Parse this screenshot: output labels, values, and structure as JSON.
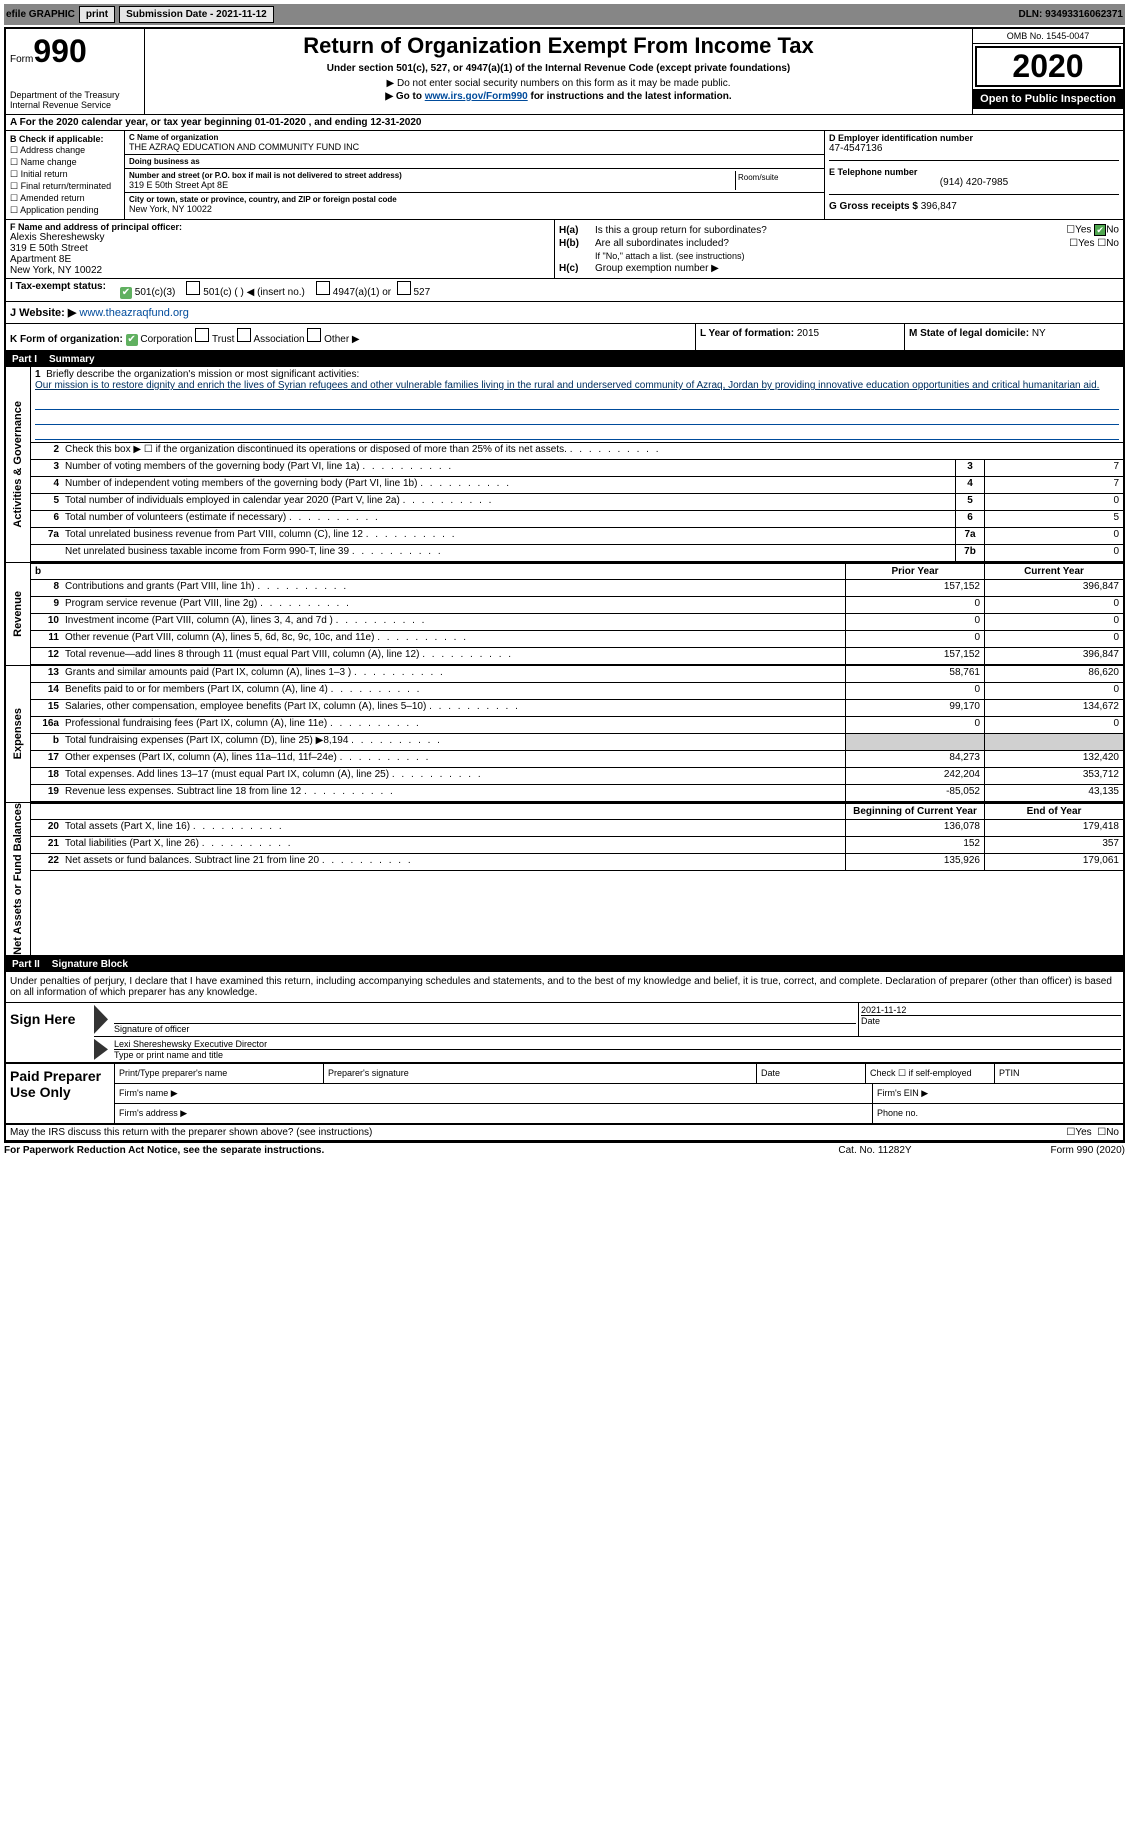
{
  "topbar": {
    "efile": "efile GRAPHIC",
    "print": "print",
    "submission_label": "Submission Date - 2021-11-12",
    "dln": "DLN: 93493316062371"
  },
  "header": {
    "form_word": "Form",
    "form_num": "990",
    "dept": "Department of the Treasury\nInternal Revenue Service",
    "title": "Return of Organization Exempt From Income Tax",
    "subtitle": "Under section 501(c), 527, or 4947(a)(1) of the Internal Revenue Code (except private foundations)",
    "line1": "▶ Do not enter social security numbers on this form as it may be made public.",
    "line2_pre": "▶ Go to ",
    "line2_link": "www.irs.gov/Form990",
    "line2_post": " for instructions and the latest information.",
    "omb": "OMB No. 1545-0047",
    "year": "2020",
    "open": "Open to Public Inspection"
  },
  "row_a": "A For the 2020 calendar year, or tax year beginning 01-01-2020   , and ending 12-31-2020",
  "box_b": {
    "label": "B Check if applicable:",
    "opts": [
      "Address change",
      "Name change",
      "Initial return",
      "Final return/terminated",
      "Amended return",
      "Application pending"
    ]
  },
  "box_c": {
    "name_lbl": "C Name of organization",
    "name": "THE AZRAQ EDUCATION AND COMMUNITY FUND INC",
    "dba_lbl": "Doing business as",
    "dba": "",
    "addr_lbl": "Number and street (or P.O. box if mail is not delivered to street address)",
    "room_lbl": "Room/suite",
    "addr": "319 E 50th Street Apt 8E",
    "city_lbl": "City or town, state or province, country, and ZIP or foreign postal code",
    "city": "New York, NY  10022"
  },
  "box_d": {
    "ein_lbl": "D Employer identification number",
    "ein": "47-4547136",
    "tel_lbl": "E Telephone number",
    "tel": "(914) 420-7985",
    "gross_lbl": "G Gross receipts $",
    "gross": "396,847"
  },
  "box_f": {
    "lbl": "F Name and address of principal officer:",
    "lines": [
      "Alexis Shereshewsky",
      "319 E 50th Street",
      "Apartment 8E",
      "New York, NY 10022"
    ]
  },
  "box_h": {
    "a_lbl": "H(a)",
    "a_txt": "Is this a group return for subordinates?",
    "b_lbl": "H(b)",
    "b_txt": "Are all subordinates included?",
    "b_note": "If \"No,\" attach a list. (see instructions)",
    "c_lbl": "H(c)",
    "c_txt": "Group exemption number ▶",
    "yes": "Yes",
    "no": "No"
  },
  "row_i": {
    "lbl": "I   Tax-exempt status:",
    "o1": "501(c)(3)",
    "o2": "501(c) (  ) ◀ (insert no.)",
    "o3": "4947(a)(1) or",
    "o4": "527"
  },
  "row_j": {
    "lbl": "J  Website: ▶",
    "url": "www.theazraqfund.org"
  },
  "row_k": {
    "lbl": "K Form of organization:",
    "o1": "Corporation",
    "o2": "Trust",
    "o3": "Association",
    "o4": "Other ▶"
  },
  "row_l": {
    "lbl": "L Year of formation:",
    "val": "2015"
  },
  "row_m": {
    "lbl": "M State of legal domicile:",
    "val": "NY"
  },
  "part1_hdr": {
    "part": "Part I",
    "title": "Summary"
  },
  "mission": {
    "num": "1",
    "lbl": "Briefly describe the organization's mission or most significant activities:",
    "txt": "Our mission is to restore dignity and enrich the lives of Syrian refugees and other vulnerable families living in the rural and underserved community of Azraq, Jordan by providing innovative education opportunities and critical humanitarian aid."
  },
  "gov_lines": [
    {
      "n": "2",
      "t": "Check this box ▶ ☐ if the organization discontinued its operations or disposed of more than 25% of its net assets.",
      "box": "",
      "v": ""
    },
    {
      "n": "3",
      "t": "Number of voting members of the governing body (Part VI, line 1a)",
      "box": "3",
      "v": "7"
    },
    {
      "n": "4",
      "t": "Number of independent voting members of the governing body (Part VI, line 1b)",
      "box": "4",
      "v": "7"
    },
    {
      "n": "5",
      "t": "Total number of individuals employed in calendar year 2020 (Part V, line 2a)",
      "box": "5",
      "v": "0"
    },
    {
      "n": "6",
      "t": "Total number of volunteers (estimate if necessary)",
      "box": "6",
      "v": "5"
    },
    {
      "n": "7a",
      "t": "Total unrelated business revenue from Part VIII, column (C), line 12",
      "box": "7a",
      "v": "0"
    },
    {
      "n": "",
      "t": "Net unrelated business taxable income from Form 990-T, line 39",
      "box": "7b",
      "v": "0"
    }
  ],
  "rev_hdr": {
    "c1": "Prior Year",
    "c2": "Current Year"
  },
  "rev_lines": [
    {
      "n": "8",
      "t": "Contributions and grants (Part VIII, line 1h)",
      "p": "157,152",
      "c": "396,847"
    },
    {
      "n": "9",
      "t": "Program service revenue (Part VIII, line 2g)",
      "p": "0",
      "c": "0"
    },
    {
      "n": "10",
      "t": "Investment income (Part VIII, column (A), lines 3, 4, and 7d )",
      "p": "0",
      "c": "0"
    },
    {
      "n": "11",
      "t": "Other revenue (Part VIII, column (A), lines 5, 6d, 8c, 9c, 10c, and 11e)",
      "p": "0",
      "c": "0"
    },
    {
      "n": "12",
      "t": "Total revenue—add lines 8 through 11 (must equal Part VIII, column (A), line 12)",
      "p": "157,152",
      "c": "396,847"
    }
  ],
  "exp_lines": [
    {
      "n": "13",
      "t": "Grants and similar amounts paid (Part IX, column (A), lines 1–3 )",
      "p": "58,761",
      "c": "86,620"
    },
    {
      "n": "14",
      "t": "Benefits paid to or for members (Part IX, column (A), line 4)",
      "p": "0",
      "c": "0"
    },
    {
      "n": "15",
      "t": "Salaries, other compensation, employee benefits (Part IX, column (A), lines 5–10)",
      "p": "99,170",
      "c": "134,672"
    },
    {
      "n": "16a",
      "t": "Professional fundraising fees (Part IX, column (A), line 11e)",
      "p": "0",
      "c": "0"
    },
    {
      "n": "b",
      "t": "Total fundraising expenses (Part IX, column (D), line 25) ▶8,194",
      "p": "",
      "c": "",
      "shade": true
    },
    {
      "n": "17",
      "t": "Other expenses (Part IX, column (A), lines 11a–11d, 11f–24e)",
      "p": "84,273",
      "c": "132,420"
    },
    {
      "n": "18",
      "t": "Total expenses. Add lines 13–17 (must equal Part IX, column (A), line 25)",
      "p": "242,204",
      "c": "353,712"
    },
    {
      "n": "19",
      "t": "Revenue less expenses. Subtract line 18 from line 12",
      "p": "-85,052",
      "c": "43,135"
    }
  ],
  "net_hdr": {
    "c1": "Beginning of Current Year",
    "c2": "End of Year"
  },
  "net_lines": [
    {
      "n": "20",
      "t": "Total assets (Part X, line 16)",
      "p": "136,078",
      "c": "179,418"
    },
    {
      "n": "21",
      "t": "Total liabilities (Part X, line 26)",
      "p": "152",
      "c": "357"
    },
    {
      "n": "22",
      "t": "Net assets or fund balances. Subtract line 21 from line 20",
      "p": "135,926",
      "c": "179,061"
    }
  ],
  "vtabs": {
    "gov": "Activities & Governance",
    "rev": "Revenue",
    "exp": "Expenses",
    "net": "Net Assets or Fund Balances"
  },
  "part2_hdr": {
    "part": "Part II",
    "title": "Signature Block"
  },
  "sig_decl": "Under penalties of perjury, I declare that I have examined this return, including accompanying schedules and statements, and to the best of my knowledge and belief, it is true, correct, and complete. Declaration of preparer (other than officer) is based on all information of which preparer has any knowledge.",
  "sign_here": "Sign Here",
  "sig": {
    "sig_lbl": "Signature of officer",
    "date_lbl": "Date",
    "date": "2021-11-12",
    "name": "Lexi Shereshewsky  Executive Director",
    "name_lbl": "Type or print name and title"
  },
  "paid_prep": "Paid Preparer Use Only",
  "pp": {
    "r1c1": "Print/Type preparer's name",
    "r1c2": "Preparer's signature",
    "r1c3": "Date",
    "r1c4": "Check ☐ if self-employed",
    "r1c5": "PTIN",
    "r2c1": "Firm's name  ▶",
    "r2c2": "Firm's EIN ▶",
    "r3c1": "Firm's address ▶",
    "r3c2": "Phone no."
  },
  "irs_discuss": {
    "txt": "May the IRS discuss this return with the preparer shown above? (see instructions)",
    "yes": "Yes",
    "no": "No"
  },
  "footer": {
    "l": "For Paperwork Reduction Act Notice, see the separate instructions.",
    "m": "Cat. No. 11282Y",
    "r": "Form 990 (2020)"
  },
  "colors": {
    "topbar_bg": "#868686",
    "link": "#004b9b",
    "green_check": "#4fa64f"
  }
}
